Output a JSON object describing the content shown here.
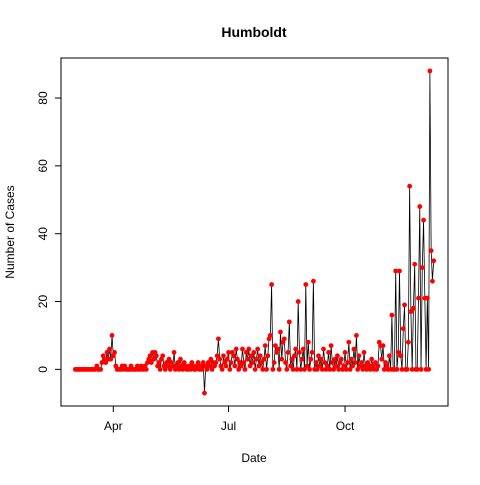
{
  "chart_data": {
    "type": "line",
    "title": "Humboldt",
    "xlabel": "Date",
    "ylabel": "Number of Cases",
    "line_color": "#000000",
    "point_color": "#ff0000",
    "xlim": [
      50.7,
      356.3
    ],
    "xticks": [
      {
        "value": 92,
        "label": "Apr"
      },
      {
        "value": 183,
        "label": "Jul"
      },
      {
        "value": 275,
        "label": "Oct"
      }
    ],
    "ylim": [
      -10.8,
      91.8
    ],
    "yticks": [
      0,
      20,
      40,
      60,
      80
    ],
    "x": [
      62,
      63,
      64,
      65,
      66,
      67,
      68,
      69,
      70,
      71,
      72,
      73,
      74,
      75,
      76,
      77,
      78,
      79,
      80,
      81,
      82,
      83,
      84,
      85,
      86,
      87,
      88,
      89,
      90,
      91,
      92,
      93,
      94,
      95,
      96,
      97,
      98,
      99,
      100,
      101,
      102,
      103,
      104,
      105,
      106,
      107,
      108,
      109,
      110,
      111,
      112,
      113,
      114,
      115,
      116,
      117,
      118,
      119,
      120,
      121,
      122,
      123,
      124,
      125,
      126,
      127,
      128,
      129,
      130,
      131,
      132,
      133,
      134,
      135,
      136,
      137,
      138,
      139,
      140,
      141,
      142,
      143,
      144,
      145,
      146,
      147,
      148,
      149,
      150,
      151,
      152,
      153,
      154,
      155,
      156,
      157,
      158,
      159,
      160,
      161,
      162,
      163,
      164,
      165,
      166,
      167,
      168,
      169,
      170,
      171,
      172,
      173,
      174,
      175,
      176,
      177,
      178,
      179,
      180,
      181,
      182,
      183,
      184,
      185,
      186,
      187,
      188,
      189,
      190,
      191,
      192,
      193,
      194,
      195,
      196,
      197,
      198,
      199,
      200,
      201,
      202,
      203,
      204,
      205,
      206,
      207,
      208,
      209,
      210,
      211,
      212,
      213,
      214,
      215,
      216,
      217,
      218,
      219,
      220,
      221,
      222,
      223,
      224,
      225,
      226,
      227,
      228,
      229,
      230,
      231,
      232,
      233,
      234,
      235,
      236,
      237,
      238,
      239,
      240,
      241,
      242,
      243,
      244,
      245,
      246,
      247,
      248,
      249,
      250,
      251,
      252,
      253,
      254,
      255,
      256,
      257,
      258,
      259,
      260,
      261,
      262,
      263,
      264,
      265,
      266,
      267,
      268,
      269,
      270,
      271,
      272,
      273,
      274,
      275,
      276,
      277,
      278,
      279,
      280,
      281,
      282,
      283,
      284,
      285,
      286,
      287,
      288,
      289,
      290,
      291,
      292,
      293,
      294,
      295,
      296,
      297,
      298,
      299,
      300,
      301,
      302,
      303,
      304,
      305,
      306,
      307,
      308,
      309,
      310,
      311,
      312,
      313,
      314,
      315,
      316,
      317,
      318,
      319,
      320,
      321,
      322,
      323,
      324,
      325,
      326,
      327,
      328,
      329,
      330,
      331,
      332,
      333,
      334,
      335,
      336,
      337,
      338,
      339,
      340,
      341,
      342,
      343,
      344,
      345
    ],
    "values": [
      0,
      0,
      0,
      0,
      0,
      0,
      0,
      0,
      0,
      0,
      0,
      0,
      0,
      0,
      0,
      0,
      0,
      1,
      0,
      0,
      0,
      2,
      4,
      3,
      2,
      5,
      3,
      6,
      3,
      10,
      4,
      5,
      1,
      0,
      0,
      0,
      0,
      1,
      0,
      1,
      0,
      0,
      0,
      0,
      1,
      0,
      0,
      0,
      0,
      1,
      0,
      0,
      1,
      0,
      0,
      1,
      0,
      2,
      3,
      4,
      2,
      5,
      3,
      5,
      4,
      1,
      2,
      0,
      3,
      4,
      1,
      0,
      2,
      1,
      3,
      0,
      2,
      1,
      5,
      0,
      1,
      2,
      0,
      3,
      1,
      0,
      2,
      1,
      0,
      0,
      1,
      0,
      2,
      1,
      0,
      0,
      1,
      2,
      0,
      1,
      0,
      2,
      -7,
      1,
      0,
      2,
      1,
      3,
      0,
      2,
      1,
      2,
      4,
      9,
      3,
      1,
      0,
      4,
      2,
      1,
      3,
      5,
      0,
      2,
      5,
      4,
      1,
      6,
      3,
      0,
      2,
      1,
      6,
      2,
      0,
      5,
      3,
      6,
      1,
      4,
      2,
      5,
      0,
      3,
      6,
      1,
      4,
      2,
      0,
      3,
      7,
      0,
      4,
      9,
      10,
      25,
      0,
      2,
      7,
      5,
      6,
      0,
      11,
      3,
      8,
      9,
      2,
      0,
      5,
      14,
      1,
      3,
      0,
      4,
      6,
      0,
      20,
      5,
      0,
      3,
      6,
      0,
      25,
      1,
      8,
      0,
      3,
      5,
      26,
      0,
      2,
      0,
      4,
      1,
      3,
      0,
      6,
      2,
      0,
      1,
      5,
      0,
      7,
      2,
      0,
      3,
      1,
      4,
      0,
      2,
      3,
      0,
      1,
      5,
      0,
      2,
      8,
      0,
      3,
      1,
      6,
      2,
      10,
      0,
      4,
      1,
      2,
      0,
      5,
      1,
      0,
      2,
      1,
      0,
      3,
      1,
      0,
      2,
      0,
      1,
      8,
      7,
      3,
      7,
      0,
      2,
      1,
      0,
      4,
      0,
      16,
      0,
      0,
      29,
      0,
      5,
      29,
      4,
      0,
      12,
      19,
      0,
      0,
      8,
      54,
      17,
      0,
      18,
      31,
      0,
      0,
      21,
      48,
      0,
      30,
      44,
      21,
      0,
      21,
      0,
      88,
      35,
      26,
      32
    ]
  }
}
